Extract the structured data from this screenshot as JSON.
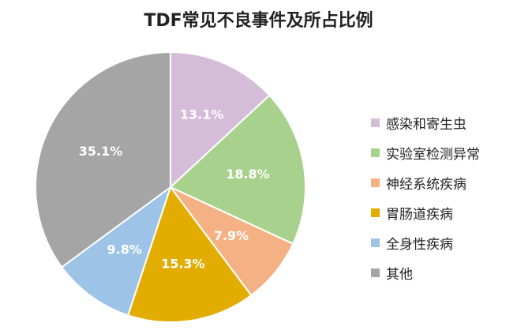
{
  "chart_data": {
    "type": "pie",
    "title": "TDF常见不良事件及所占比例",
    "categories": [
      "感染和寄生虫",
      "实验室检测异常",
      "神经系统疾病",
      "胃肠道疾病",
      "全身性疾病",
      "其他"
    ],
    "values": [
      13.1,
      18.8,
      7.9,
      15.3,
      9.8,
      35.1
    ],
    "labels": [
      "13.1%",
      "18.8%",
      "7.9%",
      "15.3%",
      "9.8%",
      "35.1%"
    ],
    "colors": [
      "#D5BDDA",
      "#A9D18E",
      "#F4B183",
      "#E3AC00",
      "#9DC3E6",
      "#A5A5A5"
    ],
    "start_angle": "12 o'clock",
    "direction": "clockwise",
    "legend_position": "right"
  }
}
